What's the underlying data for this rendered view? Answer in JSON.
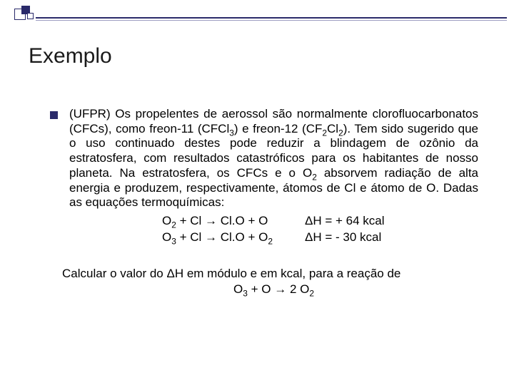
{
  "title": "Exemplo",
  "paragraph": {
    "p1a": "(UFPR) Os propelentes de aerossol são normalmente clorofluocarbonatos (CFCs), como freon-11 (CFCl",
    "p1b": ") e freon-12 (CF",
    "p1c": "Cl",
    "p1d": "). Tem sido sugerido que o uso continuado destes pode reduzir a blindagem de ozônio da estratosfera, com resultados catastróficos para os habitantes de nosso planeta. Na estratosfera, os CFCs e o O",
    "p1e": " absorvem radiação de alta energia e produzem, respectivamente, átomos de Cl e átomo de O. Dadas as equações termoquímicas:"
  },
  "eq1_lhs_a": "O",
  "eq1_lhs_b": " + Cl ",
  "arrow": "→",
  "eq1_lhs_c": " Cl.O + O",
  "eq1_rhs": "ΔH = + 64 kcal",
  "eq2_lhs_a": "O",
  "eq2_lhs_b": " + Cl ",
  "eq2_lhs_c": " Cl.O + O",
  "eq2_rhs": "ΔH = - 30 kcal",
  "follow1": "Calcular o valor do ΔH em módulo e em kcal, para a reação de",
  "follow2a": "O",
  "follow2b": " + O ",
  "follow2c": " 2 O",
  "sub2": "2",
  "sub3": "3",
  "colors": {
    "accent": "#2a2a6a",
    "text": "#000000",
    "bg": "#ffffff"
  }
}
